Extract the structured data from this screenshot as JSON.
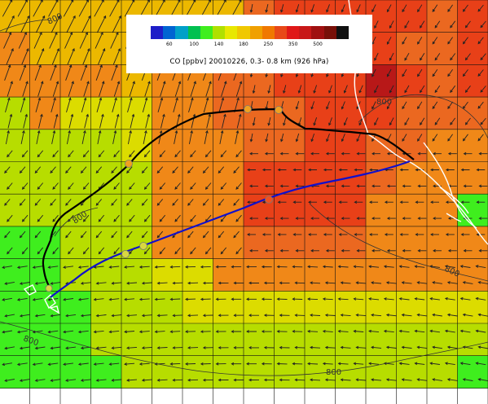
{
  "map": {
    "colors": {
      "green": "#3fee1e",
      "yellowgreen": "#b7dd00",
      "yellow": "#dcdc00",
      "gold": "#ecb800",
      "orange": "#f08818",
      "darkorange": "#eb6820",
      "red": "#e84018",
      "darkred": "#b81818"
    },
    "grid": [
      "vvvvvvvvrRRRRRrR",
      "ovvvvvvrrRRRRrrR",
      "oooovoorrRRRdRrR",
      "loLLLoorrrRRRrrr",
      "llllLooorrRRrroo",
      "llllloooRRRRrooo",
      "llllloooRRRRooog",
      "gglllooorrrroooo",
      "gglllLLooooooooo",
      "ggglllLLLLLLLLLL",
      "ggglllllllllllll",
      "gggglllllllllllg"
    ],
    "contour_label": "800",
    "trajectory_colors": [
      "#000000",
      "#1010cc"
    ],
    "marker_color_orange": "#f0a020",
    "marker_color_yellow": "#d8d840",
    "marker_color_red": "#f05020"
  },
  "legend": {
    "colors": [
      "#1e1ec8",
      "#0064d2",
      "#00a0c8",
      "#00c050",
      "#3fee1e",
      "#b0e000",
      "#e8e800",
      "#f0c800",
      "#f0a000",
      "#f07800",
      "#e84818",
      "#e01818",
      "#c81818",
      "#a01010",
      "#781008",
      "#101010"
    ],
    "ticks": [
      "60",
      "100",
      "140",
      "180",
      "250",
      "350",
      "500"
    ],
    "title": "CO [ppbv] 20010226,  0.3- 0.8 km (926 hPa)"
  }
}
